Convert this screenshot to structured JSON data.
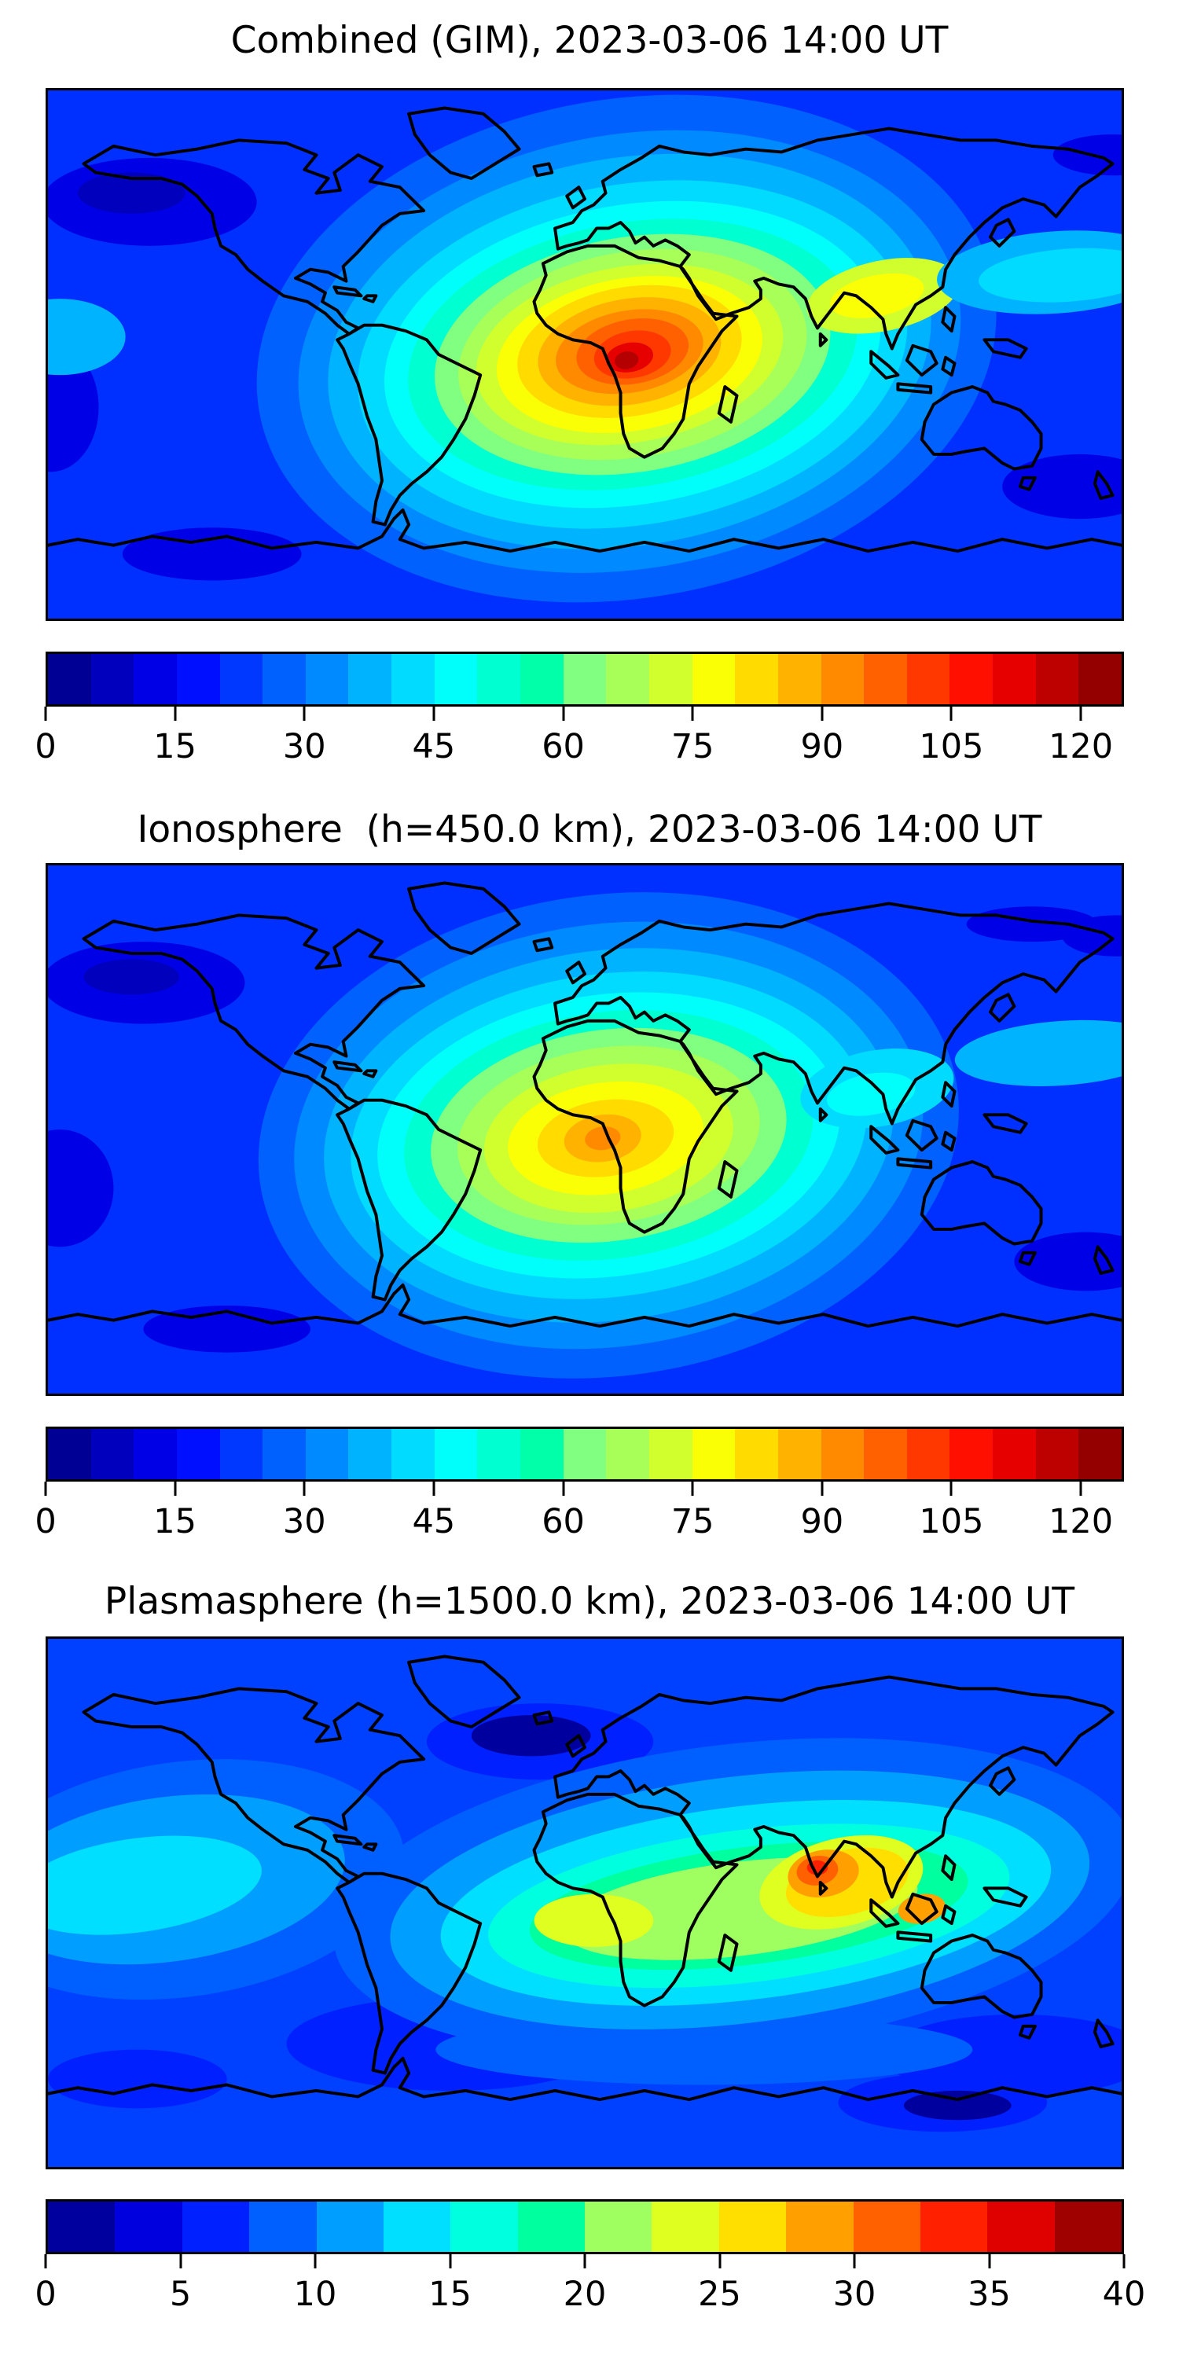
{
  "figure": {
    "background": "#ffffff",
    "frame_color": "#000000",
    "text_color": "#000000"
  },
  "chart_data": [
    {
      "type": "filled-contour-map",
      "title": "Combined (GIM), 2023-03-06 14:00 UT",
      "projection": "equirectangular",
      "lon_range": [
        -180,
        180
      ],
      "lat_range": [
        -90,
        90
      ],
      "colormap": "jet",
      "grid": false,
      "base_color": "#0030ff",
      "colorbar": {
        "orientation": "horizontal",
        "vmin": 0,
        "vmax": 125,
        "level_step": 5,
        "ticks": [
          0,
          15,
          30,
          45,
          60,
          75,
          90,
          105,
          120
        ],
        "segment_colors": [
          "#000094",
          "#0000bd",
          "#0000e6",
          "#000fff",
          "#0038ff",
          "#0061ff",
          "#008aff",
          "#00b3ff",
          "#00dbff",
          "#00fffa",
          "#00ffd1",
          "#00ffa8",
          "#80ff80",
          "#a8ff57",
          "#d1ff2e",
          "#faff05",
          "#ffdb00",
          "#ffb300",
          "#ff8a00",
          "#ff6100",
          "#ff3800",
          "#ff0f00",
          "#e60000",
          "#bd0000",
          "#940000"
        ]
      },
      "peak": {
        "approx_lon": 15,
        "approx_lat": 0,
        "approx_value": 125,
        "region": "equatorial Africa"
      },
      "field_approximation": [
        {
          "color": "#0000e6",
          "lon": -146,
          "lat": 52,
          "rx": 36,
          "ry": 15,
          "rot": 0
        },
        {
          "color": "#0000bd",
          "lon": -152,
          "lat": 55,
          "rx": 18,
          "ry": 7,
          "rot": 0
        },
        {
          "color": "#0000e6",
          "lon": -179,
          "lat": -18,
          "rx": 16,
          "ry": 22,
          "rot": 0
        },
        {
          "color": "#0000e6",
          "lon": 166,
          "lat": -45,
          "rx": 26,
          "ry": 11,
          "rot": 0
        },
        {
          "color": "#0000e6",
          "lon": -125,
          "lat": -68,
          "rx": 30,
          "ry": 9,
          "rot": 0
        },
        {
          "color": "#0000e6",
          "lon": 177,
          "lat": 68,
          "rx": 20,
          "ry": 7,
          "rot": 0
        },
        {
          "color": "#0061ff",
          "lon": 14,
          "lat": 2,
          "rx": 125,
          "ry": 85,
          "rot": -10
        },
        {
          "color": "#008aff",
          "lon": 15,
          "lat": 1,
          "rx": 112,
          "ry": 74,
          "rot": -10
        },
        {
          "color": "#00b3ff",
          "lon": 15,
          "lat": 1,
          "rx": 102,
          "ry": 66,
          "rot": -10
        },
        {
          "color": "#00dbff",
          "lon": 16,
          "lat": 0,
          "rx": 93,
          "ry": 58,
          "rot": -10
        },
        {
          "color": "#00fffa",
          "lon": 16,
          "lat": 0,
          "rx": 84,
          "ry": 51,
          "rot": -10
        },
        {
          "color": "#00ffd1",
          "lon": 16,
          "lat": 0,
          "rx": 76,
          "ry": 45,
          "rot": -10
        },
        {
          "color": "#80ff80",
          "lon": 16,
          "lat": 0,
          "rx": 67,
          "ry": 40,
          "rot": -10
        },
        {
          "color": "#a8ff57",
          "lon": 16,
          "lat": 0,
          "rx": 59,
          "ry": 35,
          "rot": -10
        },
        {
          "color": "#d1ff2e",
          "lon": 15,
          "lat": 0,
          "rx": 52,
          "ry": 30,
          "rot": -10
        },
        {
          "color": "#faff05",
          "lon": 15,
          "lat": 0,
          "rx": 45,
          "ry": 26,
          "rot": -10
        },
        {
          "color": "#ffdb00",
          "lon": 15,
          "lat": 1,
          "rx": 38,
          "ry": 22,
          "rot": -10
        },
        {
          "color": "#ffb300",
          "lon": 15,
          "lat": 1,
          "rx": 31,
          "ry": 18,
          "rot": -10
        },
        {
          "color": "#ff8a00",
          "lon": 15,
          "lat": 1,
          "rx": 25,
          "ry": 14,
          "rot": -10
        },
        {
          "color": "#ff6100",
          "lon": 16,
          "lat": 1,
          "rx": 19,
          "ry": 11,
          "rot": -10
        },
        {
          "color": "#ff3800",
          "lon": 16,
          "lat": 0,
          "rx": 13,
          "ry": 8,
          "rot": -10
        },
        {
          "color": "#e60000",
          "lon": 15,
          "lat": -1,
          "rx": 8,
          "ry": 5,
          "rot": -10
        },
        {
          "color": "#b40000",
          "lon": 14,
          "lat": -2,
          "rx": 4,
          "ry": 3,
          "rot": -10
        },
        {
          "color": "#d1ff2e",
          "lon": 100,
          "lat": 20,
          "rx": 26,
          "ry": 12,
          "rot": -12
        },
        {
          "color": "#faff05",
          "lon": 98,
          "lat": 20,
          "rx": 16,
          "ry": 7,
          "rot": -12
        },
        {
          "color": "#00b3ff",
          "lon": 158,
          "lat": 28,
          "rx": 40,
          "ry": 14,
          "rot": -4
        },
        {
          "color": "#00dbff",
          "lon": 162,
          "lat": 27,
          "rx": 30,
          "ry": 9,
          "rot": -4
        },
        {
          "color": "#00b3ff",
          "lon": -176,
          "lat": 6,
          "rx": 22,
          "ry": 13,
          "rot": 0
        }
      ]
    },
    {
      "type": "filled-contour-map",
      "title": "Ionosphere  (h=450.0 km), 2023-03-06 14:00 UT",
      "projection": "equirectangular",
      "lon_range": [
        -180,
        180
      ],
      "lat_range": [
        -90,
        90
      ],
      "colormap": "jet",
      "grid": false,
      "base_color": "#0030ff",
      "colorbar": {
        "orientation": "horizontal",
        "vmin": 0,
        "vmax": 125,
        "level_step": 5,
        "ticks": [
          0,
          15,
          30,
          45,
          60,
          75,
          90,
          105,
          120
        ],
        "segment_colors": [
          "#000094",
          "#0000bd",
          "#0000e6",
          "#000fff",
          "#0038ff",
          "#0061ff",
          "#008aff",
          "#00b3ff",
          "#00dbff",
          "#00fffa",
          "#00ffd1",
          "#00ffa8",
          "#80ff80",
          "#a8ff57",
          "#d1ff2e",
          "#faff05",
          "#ffdb00",
          "#ffb300",
          "#ff8a00",
          "#ff6100",
          "#ff3800",
          "#ff0f00",
          "#e60000",
          "#bd0000",
          "#940000"
        ]
      },
      "peak": {
        "approx_lon": 8,
        "approx_lat": -2,
        "approx_value": 90,
        "region": "Gulf of Guinea / central Africa"
      },
      "field_approximation": [
        {
          "color": "#0000e6",
          "lon": -148,
          "lat": 50,
          "rx": 34,
          "ry": 14,
          "rot": 0
        },
        {
          "color": "#0000bd",
          "lon": -152,
          "lat": 52,
          "rx": 16,
          "ry": 6,
          "rot": 0
        },
        {
          "color": "#0000e6",
          "lon": -176,
          "lat": -20,
          "rx": 18,
          "ry": 20,
          "rot": 0
        },
        {
          "color": "#0000e6",
          "lon": 168,
          "lat": -45,
          "rx": 24,
          "ry": 10,
          "rot": 0
        },
        {
          "color": "#0000e6",
          "lon": -120,
          "lat": -68,
          "rx": 28,
          "ry": 8,
          "rot": 0
        },
        {
          "color": "#0000e6",
          "lon": 178,
          "lat": 66,
          "rx": 18,
          "ry": 7,
          "rot": 0
        },
        {
          "color": "#0000e6",
          "lon": 150,
          "lat": 70,
          "rx": 22,
          "ry": 6,
          "rot": 0
        },
        {
          "color": "#0061ff",
          "lon": 8,
          "lat": -2,
          "rx": 118,
          "ry": 82,
          "rot": -8
        },
        {
          "color": "#008aff",
          "lon": 8,
          "lat": -2,
          "rx": 106,
          "ry": 72,
          "rot": -8
        },
        {
          "color": "#00b3ff",
          "lon": 8,
          "lat": -2,
          "rx": 96,
          "ry": 63,
          "rot": -8
        },
        {
          "color": "#00dbff",
          "lon": 8,
          "lat": -2,
          "rx": 87,
          "ry": 55,
          "rot": -8
        },
        {
          "color": "#00fffa",
          "lon": 8,
          "lat": -2,
          "rx": 78,
          "ry": 48,
          "rot": -8
        },
        {
          "color": "#00ffd1",
          "lon": 8,
          "lat": -2,
          "rx": 69,
          "ry": 42,
          "rot": -8
        },
        {
          "color": "#80ff80",
          "lon": 8,
          "lat": -2,
          "rx": 60,
          "ry": 36,
          "rot": -8
        },
        {
          "color": "#a8ff57",
          "lon": 8,
          "lat": -2,
          "rx": 51,
          "ry": 30,
          "rot": -8
        },
        {
          "color": "#d1ff2e",
          "lon": 8,
          "lat": -3,
          "rx": 42,
          "ry": 25,
          "rot": -8
        },
        {
          "color": "#faff05",
          "lon": 7,
          "lat": -3,
          "rx": 33,
          "ry": 19,
          "rot": -8
        },
        {
          "color": "#ffdb00",
          "lon": 7,
          "lat": -3,
          "rx": 23,
          "ry": 13,
          "rot": -8
        },
        {
          "color": "#ffb300",
          "lon": 6,
          "lat": -3,
          "rx": 13,
          "ry": 8,
          "rot": -8
        },
        {
          "color": "#ff8a00",
          "lon": 6,
          "lat": -3,
          "rx": 6,
          "ry": 4,
          "rot": -8
        },
        {
          "color": "#00dbff",
          "lon": 98,
          "lat": 14,
          "rx": 26,
          "ry": 13,
          "rot": -10
        },
        {
          "color": "#00fffa",
          "lon": 96,
          "lat": 12,
          "rx": 15,
          "ry": 7,
          "rot": -10
        },
        {
          "color": "#00b3ff",
          "lon": 160,
          "lat": 26,
          "rx": 36,
          "ry": 11,
          "rot": -4
        }
      ]
    },
    {
      "type": "filled-contour-map",
      "title": "Plasmasphere (h=1500.0 km), 2023-03-06 14:00 UT",
      "projection": "equirectangular",
      "lon_range": [
        -180,
        180
      ],
      "lat_range": [
        -90,
        90
      ],
      "colormap": "jet",
      "grid": false,
      "base_color": "#0040ff",
      "colorbar": {
        "orientation": "horizontal",
        "vmin": 0,
        "vmax": 40,
        "level_step": 2.5,
        "ticks": [
          0,
          5,
          10,
          15,
          20,
          25,
          30,
          35,
          40
        ],
        "segment_colors": [
          "#00009f",
          "#0000df",
          "#0020ff",
          "#0060ff",
          "#009fff",
          "#00dfff",
          "#00ffdf",
          "#00ff9f",
          "#9fff60",
          "#dfff20",
          "#ffdf00",
          "#ff9f00",
          "#ff6000",
          "#ff2000",
          "#df0000",
          "#9f0000"
        ]
      },
      "peak": {
        "approx_lon": 78,
        "approx_lat": 12,
        "approx_value": 37,
        "region": "southern India"
      },
      "field_approximation": [
        {
          "color": "#0020ff",
          "lon": -45,
          "lat": -48,
          "rx": 55,
          "ry": 16,
          "rot": 0
        },
        {
          "color": "#0020ff",
          "lon": 145,
          "lat": -52,
          "rx": 45,
          "ry": 14,
          "rot": 0
        },
        {
          "color": "#0020ff",
          "lon": -15,
          "lat": 55,
          "rx": 38,
          "ry": 13,
          "rot": 0
        },
        {
          "color": "#00009f",
          "lon": -18,
          "lat": 57,
          "rx": 20,
          "ry": 7,
          "rot": 0
        },
        {
          "color": "#0020ff",
          "lon": 120,
          "lat": -68,
          "rx": 35,
          "ry": 10,
          "rot": 0
        },
        {
          "color": "#00009f",
          "lon": 125,
          "lat": -69,
          "rx": 18,
          "ry": 5,
          "rot": 0
        },
        {
          "color": "#0020ff",
          "lon": -150,
          "lat": -60,
          "rx": 30,
          "ry": 10,
          "rot": 0
        },
        {
          "color": "#0060ff",
          "lon": -135,
          "lat": 8,
          "rx": 75,
          "ry": 40,
          "rot": -8
        },
        {
          "color": "#009fff",
          "lon": -140,
          "lat": 8,
          "rx": 60,
          "ry": 28,
          "rot": -8
        },
        {
          "color": "#00dfff",
          "lon": -150,
          "lat": 6,
          "rx": 42,
          "ry": 16,
          "rot": -8
        },
        {
          "color": "#009fff",
          "lon": -28,
          "lat": -20,
          "rx": 40,
          "ry": 12,
          "rot": 5
        },
        {
          "color": "#0060ff",
          "lon": 40,
          "lat": -50,
          "rx": 90,
          "ry": 12,
          "rot": 0
        },
        {
          "color": "#0060ff",
          "lon": 50,
          "lat": 2,
          "rx": 135,
          "ry": 52,
          "rot": -7
        },
        {
          "color": "#009fff",
          "lon": 52,
          "lat": 1,
          "rx": 118,
          "ry": 42,
          "rot": -7
        },
        {
          "color": "#00dfff",
          "lon": 54,
          "lat": 0,
          "rx": 103,
          "ry": 33,
          "rot": -7
        },
        {
          "color": "#00ffdf",
          "lon": 55,
          "lat": -1,
          "rx": 88,
          "ry": 26,
          "rot": -7
        },
        {
          "color": "#00ff9f",
          "lon": 55,
          "lat": -1,
          "rx": 74,
          "ry": 20,
          "rot": -7
        },
        {
          "color": "#9fff60",
          "lon": 52,
          "lat": -2,
          "rx": 60,
          "ry": 16,
          "rot": -7
        },
        {
          "color": "#dfff20",
          "lon": 3,
          "lat": -6,
          "rx": 20,
          "ry": 9,
          "rot": 0
        },
        {
          "color": "#dfff20",
          "lon": 86,
          "lat": 7,
          "rx": 28,
          "ry": 15,
          "rot": -14
        },
        {
          "color": "#ffdf00",
          "lon": 88,
          "lat": 7,
          "rx": 21,
          "ry": 11,
          "rot": -14
        },
        {
          "color": "#ff9f00",
          "lon": 80,
          "lat": 10,
          "rx": 12,
          "ry": 8,
          "rot": -10
        },
        {
          "color": "#ff6000",
          "lon": 78,
          "lat": 11,
          "rx": 7,
          "ry": 5,
          "rot": -10
        },
        {
          "color": "#ff2000",
          "lon": 78,
          "lat": 12,
          "rx": 3.5,
          "ry": 2.5,
          "rot": 0
        },
        {
          "color": "#ff9f00",
          "lon": 113,
          "lat": -2,
          "rx": 8,
          "ry": 5,
          "rot": -10
        }
      ]
    }
  ]
}
